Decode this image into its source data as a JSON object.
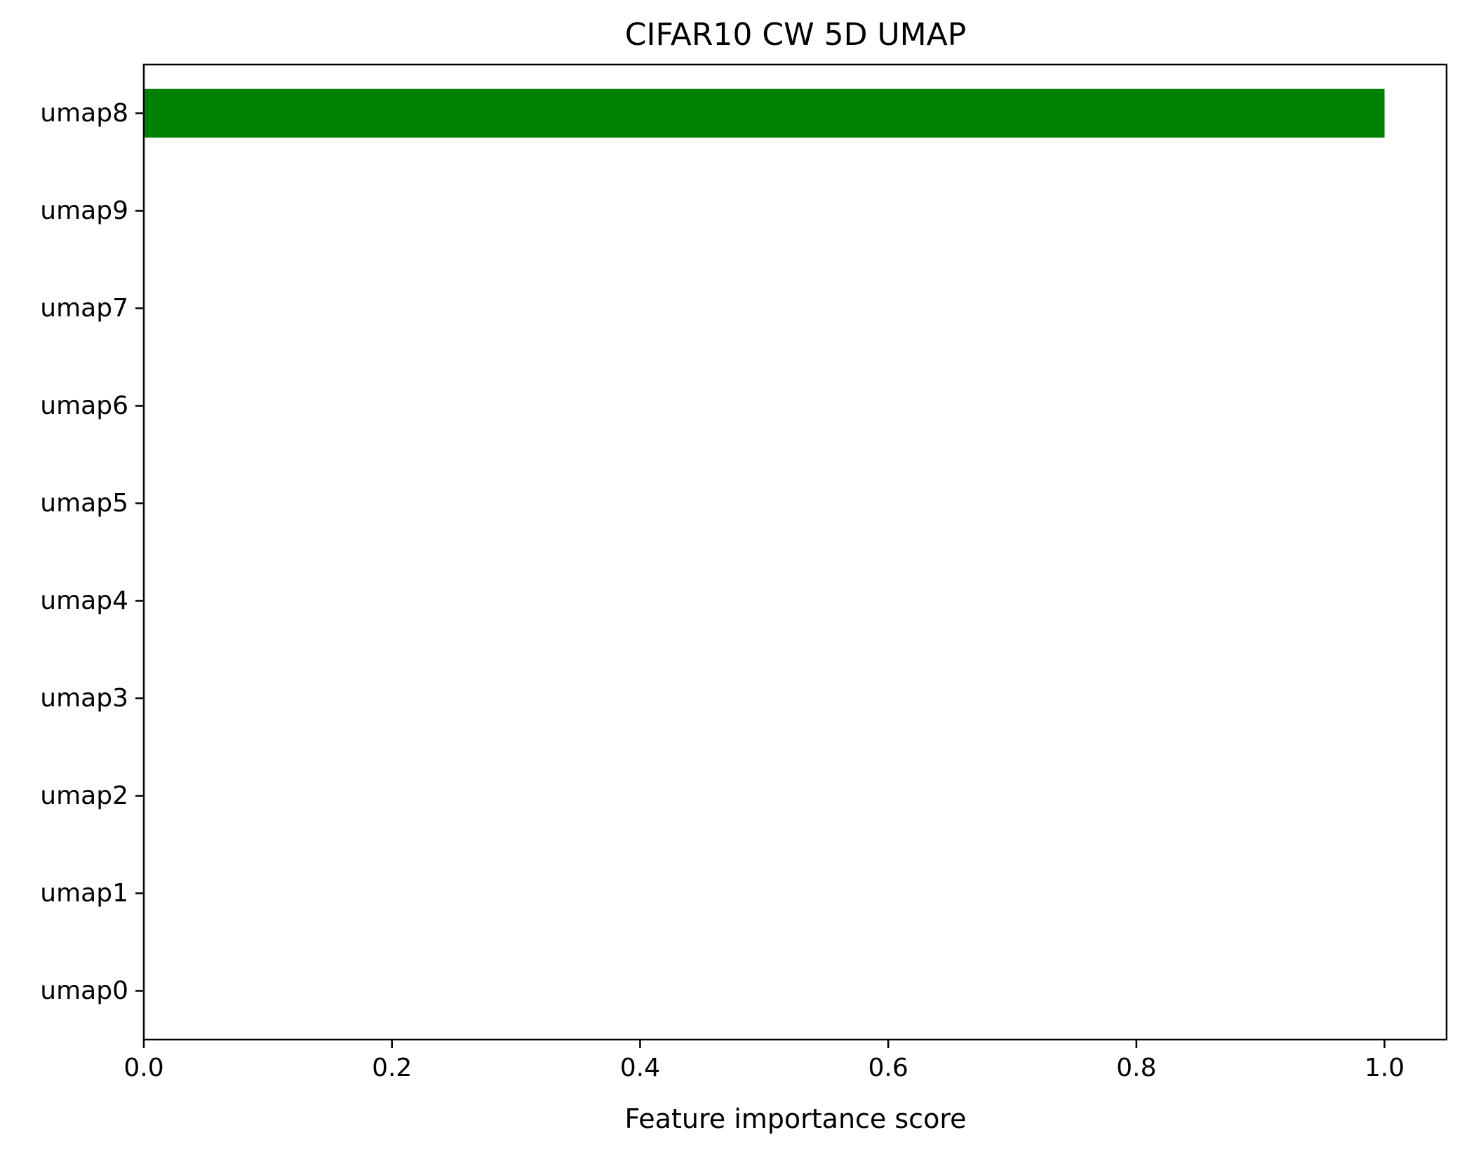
{
  "chart_data": {
    "type": "bar",
    "orientation": "horizontal",
    "title": "CIFAR10 CW 5D UMAP",
    "xlabel": "Feature importance score",
    "ylabel": "",
    "categories": [
      "umap8",
      "umap9",
      "umap7",
      "umap6",
      "umap5",
      "umap4",
      "umap3",
      "umap2",
      "umap1",
      "umap0"
    ],
    "values": [
      1.0,
      0.0,
      0.0,
      0.0,
      0.0,
      0.0,
      0.0,
      0.0,
      0.0,
      0.0
    ],
    "xlim": [
      0.0,
      1.05
    ],
    "xticks": [
      "0.0",
      "0.2",
      "0.4",
      "0.6",
      "0.8",
      "1.0"
    ],
    "bar_color": "#008000",
    "grid": false
  }
}
